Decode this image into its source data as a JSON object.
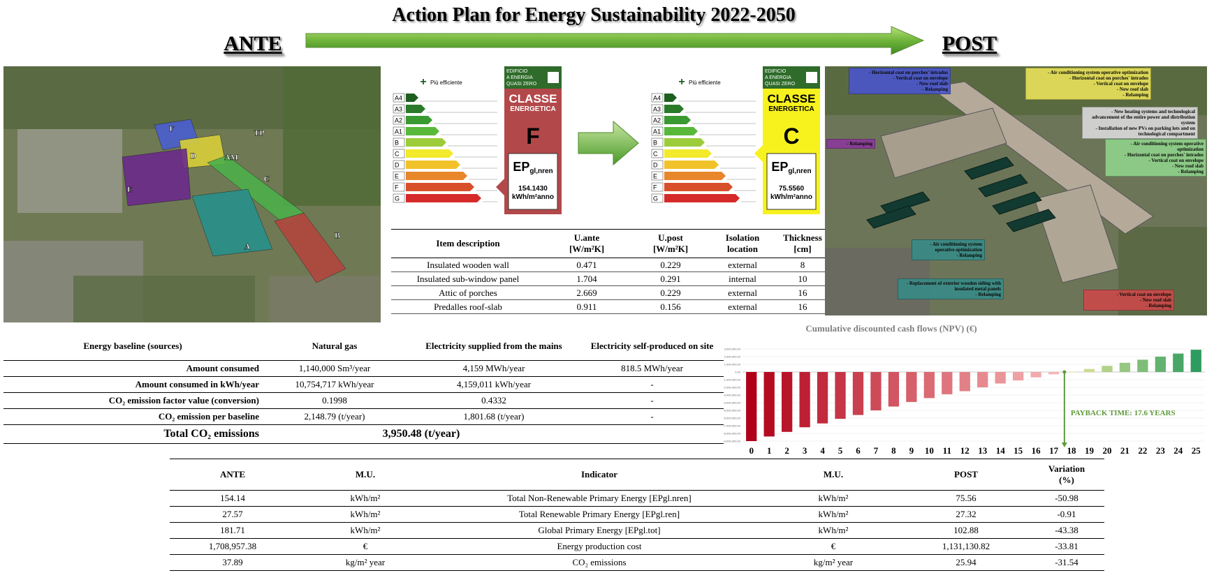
{
  "header": {
    "title": "Action Plan for Energy Sustainability 2022-2050",
    "ante": "ANTE",
    "post": "POST"
  },
  "map_labels": [
    "F",
    "D",
    "TP",
    "AM",
    "C",
    "E",
    "A",
    "B"
  ],
  "energy_label": {
    "badge": [
      "EDIFICIO",
      "A ENERGIA",
      "QUASI ZERO"
    ],
    "efficiency": "Più efficiente",
    "classes": [
      "A4",
      "A3",
      "A2",
      "A1",
      "B",
      "C",
      "D",
      "E",
      "F",
      "G"
    ],
    "classe": "CLASSE",
    "energetica": "ENERGETICA",
    "ante": {
      "class": "F",
      "ep": "EP",
      "ep_sub": "gl,nren",
      "value": "154.1430",
      "unit": "kWh/m²anno"
    },
    "post": {
      "class": "C",
      "ep": "EP",
      "ep_sub": "gl,nren",
      "value": "75.5560",
      "unit": "kWh/m²anno"
    }
  },
  "isolation_table": {
    "headers": [
      "Item description",
      "U.ante\n[W/m²K]",
      "U.post\n[W/m²K]",
      "Isolation\nlocation",
      "Thickness\n[cm]"
    ],
    "rows": [
      [
        "Insulated wooden wall",
        "0.471",
        "0.229",
        "external",
        "8"
      ],
      [
        "Insulated sub-window panel",
        "1.704",
        "0.291",
        "internal",
        "10"
      ],
      [
        "Attic of porches",
        "2.669",
        "0.229",
        "external",
        "16"
      ],
      [
        "Predalles roof-slab",
        "0.911",
        "0.156",
        "external",
        "16"
      ]
    ]
  },
  "post_annotations": [
    {
      "color": "#4a56c8",
      "lines": [
        "- Horizontal coat on porches' intrados",
        "- Vertical coat on envelope",
        "- New roof slab",
        "- Relamping"
      ]
    },
    {
      "color": "#e6e05a",
      "lines": [
        "- Air conditioning system operative optimization",
        "- Horizontal coat on porches' intrados",
        "- Vertical coat on envelope",
        "- New roof slab",
        "- Relamping"
      ]
    },
    {
      "color": "#d8d8d8",
      "lines": [
        "- New heating systems and technological advancement of the entire power and distribution system",
        "- Installation of new PVs on parking lots and on technological compartment"
      ]
    },
    {
      "color": "#8a3a9a",
      "lines": [
        "- Relamping"
      ]
    },
    {
      "color": "#8fd08a",
      "lines": [
        "- Air conditioning system operative optimization",
        "- Horizontal coat on porches' intrados",
        "- Vertical coat on envelope",
        "- New roof slab",
        "- Relamping"
      ]
    },
    {
      "color": "#3a8a86",
      "lines": [
        "- Air conditioning system operative optimization",
        "- Relamping"
      ]
    },
    {
      "color": "#3a8a86",
      "lines": [
        "- Replacement of exterior wooden siding with insulated metal panels",
        "- Relamping"
      ]
    },
    {
      "color": "#c94a4a",
      "lines": [
        "- Vertical coat on envelope",
        "- New roof slab",
        "- Relamping"
      ]
    }
  ],
  "baseline_table": {
    "headers": [
      "Energy baseline (sources)",
      "Natural gas",
      "Electricity supplied from the mains",
      "Electricity self-produced on site"
    ],
    "rows": [
      [
        "Amount consumed",
        "1,140,000  Sm³/year",
        "4,159 MWh/year",
        "818.5 MWh/year"
      ],
      [
        "Amount consumed in kWh/year",
        "10,754,717  kWh/year",
        "4,159,011  kWh/year",
        "-"
      ],
      [
        "CO₂ emission factor value (conversion)",
        "0.1998",
        "0.4332",
        "-"
      ],
      [
        "CO₂ emission per baseline",
        "2,148.79 (t/year)",
        "1,801.68 (t/year)",
        "-"
      ]
    ],
    "total": {
      "label": "Total CO₂ emissions",
      "value": "3,950.48 (t/year)"
    }
  },
  "chart_data": {
    "type": "bar",
    "title": "Cumulative discounted cash flows (NPV) (€)",
    "categories": [
      "0",
      "1",
      "2",
      "3",
      "4",
      "5",
      "6",
      "7",
      "8",
      "9",
      "10",
      "11",
      "12",
      "13",
      "14",
      "15",
      "16",
      "17",
      "18",
      "19",
      "20",
      "21",
      "22",
      "23",
      "24",
      "25"
    ],
    "values": [
      -9000000,
      -8400000,
      -7800000,
      -7200000,
      -6700000,
      -6100000,
      -5600000,
      -5000000,
      -4500000,
      -3900000,
      -3400000,
      -2900000,
      -2500000,
      -2000000,
      -1500000,
      -1100000,
      -700000,
      -300000,
      50000,
      400000,
      800000,
      1200000,
      1600000,
      2000000,
      2400000,
      2900000
    ],
    "colors": {
      "negative": [
        "#b00018",
        "#f7b5b5"
      ],
      "positive": [
        "#e6e89a",
        "#2e9c5e"
      ]
    },
    "ylim": [
      -9000000,
      3000000
    ],
    "yticks": [
      {
        "value": -9000000,
        "label": "-9,000,000.00"
      },
      {
        "value": -8000000,
        "label": "-8,000,000.00"
      },
      {
        "value": -7000000,
        "label": "-7,000,000.00"
      },
      {
        "value": -6000000,
        "label": "-6,000,000.00"
      },
      {
        "value": -5000000,
        "label": "-5,000,000.00"
      },
      {
        "value": -4000000,
        "label": "-4,000,000.00"
      },
      {
        "value": -3000000,
        "label": "-3,000,000.00"
      },
      {
        "value": -2000000,
        "label": "-2,000,000.00"
      },
      {
        "value": -1000000,
        "label": "-1,000,000.00"
      },
      {
        "value": 0,
        "label": "0.00"
      },
      {
        "value": 1000000,
        "label": "1,000,000.00"
      },
      {
        "value": 2000000,
        "label": "2,000,000.00"
      },
      {
        "value": 3000000,
        "label": "3,000,000.00"
      }
    ],
    "grid": true,
    "payback": {
      "label": "PAYBACK TIME: 17.6 YEARS",
      "x": 17.6,
      "color": "#5e9a3a"
    }
  },
  "indicator_table": {
    "headers": [
      "ANTE",
      "M.U.",
      "Indicator",
      "M.U.",
      "POST",
      "Variation\n(%)"
    ],
    "rows": [
      [
        "154.14",
        "kWh/m²",
        "Total Non-Renewable Primary Energy [EPgl.nren]",
        "kWh/m²",
        "75.56",
        "-50.98"
      ],
      [
        "27.57",
        "kWh/m²",
        "Total Renewable Primary Energy [EPgl.ren]",
        "kWh/m²",
        "27.32",
        "-0.91"
      ],
      [
        "181.71",
        "kWh/m²",
        "Global Primary Energy [EPgl.tot]",
        "kWh/m²",
        "102.88",
        "-43.38"
      ],
      [
        "1,708,957.38",
        "€",
        "Energy production cost",
        "€",
        "1,131,130.82",
        "-33.81"
      ],
      [
        "37.89",
        "kg/m² year",
        "CO₂ emissions",
        "kg/m² year",
        "25.94",
        "-31.54"
      ]
    ]
  }
}
